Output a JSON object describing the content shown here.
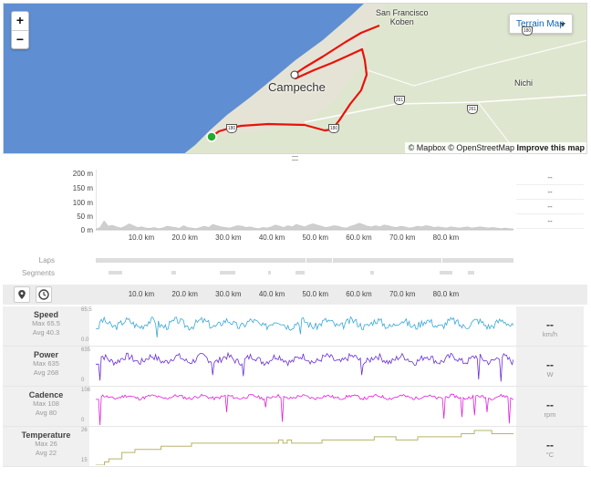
{
  "map": {
    "zoom_in": "+",
    "zoom_out": "−",
    "terrain_button": "Terrain Map",
    "labels": {
      "town1_line1": "San Francisco",
      "town1_line2": "Koben",
      "city": "Campeche",
      "nichi": "Nichi"
    },
    "shields": [
      "180",
      "261",
      "261",
      "180",
      "180"
    ],
    "attribution": {
      "mapbox": "© Mapbox",
      "osm": "© OpenStreetMap",
      "improve": "Improve this map"
    },
    "colors": {
      "route": "#e8120c",
      "water": "#5f8fd2",
      "land": "#dfe6cf",
      "start": "#27a830"
    }
  },
  "elevation": {
    "y_ticks": [
      "200 m",
      "150 m",
      "100 m",
      "50 m",
      "0 m"
    ],
    "x_ticks": [
      "10.0 km",
      "20.0 km",
      "30.0 km",
      "40.0 km",
      "50.0 km",
      "60.0 km",
      "70.0 km",
      "80.0 km"
    ],
    "side_values": [
      "--",
      "--",
      "--",
      "--"
    ],
    "profile": [
      2,
      8,
      30,
      12,
      15,
      10,
      6,
      12,
      20,
      14,
      8,
      10,
      6,
      5,
      8,
      4,
      6,
      12,
      10,
      8,
      5,
      14,
      8,
      6,
      4,
      8,
      12,
      8,
      18,
      14,
      10,
      8,
      6,
      10,
      14,
      12,
      8,
      10,
      6,
      4,
      8,
      6,
      10,
      16,
      12,
      8,
      14,
      10,
      18,
      14,
      10,
      16,
      20,
      16,
      12,
      8,
      10,
      14,
      12,
      8,
      6,
      12,
      16,
      22,
      18,
      12,
      10,
      14,
      10,
      16,
      14,
      10,
      8,
      12,
      10,
      6,
      8,
      12,
      10,
      14,
      12,
      8,
      10,
      8,
      6,
      10,
      8,
      6,
      8,
      10,
      6,
      8,
      10,
      8,
      6,
      8,
      6,
      4,
      6,
      4,
      3
    ]
  },
  "laps": {
    "label": "Laps",
    "segments": [
      [
        0,
        48.3
      ],
      [
        48.5,
        54.2
      ],
      [
        54.4,
        79.5
      ],
      [
        79.7,
        96
      ]
    ]
  },
  "segments": {
    "label": "Segments",
    "items": [
      [
        3,
        6
      ],
      [
        17.5,
        18.5
      ],
      [
        28.5,
        32
      ],
      [
        39.7,
        40.2
      ],
      [
        46,
        48
      ],
      [
        63,
        64
      ],
      [
        79,
        82
      ],
      [
        85.5,
        87
      ]
    ]
  },
  "controls": {
    "pin_icon": "map-pin",
    "clock_icon": "clock"
  },
  "streams": [
    {
      "title": "Speed",
      "max": "Max 65.5",
      "avg": "Avg 40.3",
      "value": "--",
      "unit": "km/h",
      "axis_top": "65.5",
      "axis_bottom": "0.0",
      "color": "#3aa8d8",
      "y_range": [
        0,
        65.5
      ],
      "base": 40,
      "amp": 10,
      "seed": 3,
      "dips": [
        [
          14,
          14
        ],
        [
          47,
          20
        ]
      ]
    },
    {
      "title": "Power",
      "max": "Max 635",
      "avg": "Avg 268",
      "value": "--",
      "unit": "W",
      "axis_top": "635",
      "axis_bottom": "0",
      "color": "#6a2fd6",
      "y_range": [
        0,
        635
      ],
      "base": 470,
      "amp": 90,
      "seed": 7,
      "dips": [
        [
          1,
          80
        ],
        [
          27,
          180
        ],
        [
          34,
          160
        ],
        [
          61,
          180
        ],
        [
          88,
          100
        ],
        [
          93,
          60
        ]
      ]
    },
    {
      "title": "Cadence",
      "max": "Max 108",
      "avg": "Avg 80",
      "value": "--",
      "unit": "rpm",
      "axis_top": "108",
      "axis_bottom": "0",
      "color": "#e020d8",
      "y_range": [
        0,
        108
      ],
      "base": 87,
      "amp": 7,
      "seed": 11,
      "dips": [
        [
          1,
          0
        ],
        [
          30,
          40
        ],
        [
          39,
          55
        ],
        [
          43,
          10
        ],
        [
          80,
          20
        ],
        [
          84,
          25
        ],
        [
          87,
          30
        ],
        [
          90,
          40
        ],
        [
          95,
          5
        ]
      ]
    },
    {
      "title": "Temperature",
      "max": "Max 26",
      "avg": "Avg 22",
      "value": "--",
      "unit": "°C",
      "axis_top": "26",
      "axis_bottom": "15",
      "color": "#b8b46a",
      "y_range": [
        15,
        26
      ],
      "step": true,
      "steps": [
        [
          0,
          15
        ],
        [
          2,
          16
        ],
        [
          3,
          17
        ],
        [
          6,
          19
        ],
        [
          9,
          20
        ],
        [
          15,
          21
        ],
        [
          22,
          22
        ],
        [
          37,
          22
        ],
        [
          42,
          23
        ],
        [
          43,
          22
        ],
        [
          44,
          23
        ],
        [
          45,
          22
        ],
        [
          52,
          23
        ],
        [
          58,
          23
        ],
        [
          64,
          24
        ],
        [
          69,
          23
        ],
        [
          74,
          24
        ],
        [
          81,
          24
        ],
        [
          84,
          25
        ],
        [
          87,
          26
        ],
        [
          91,
          25
        ],
        [
          96,
          25
        ]
      ]
    }
  ],
  "km_scale": {
    "min": 0,
    "max": 96,
    "ticks": [
      10,
      20,
      30,
      40,
      50,
      60,
      70,
      80
    ]
  }
}
